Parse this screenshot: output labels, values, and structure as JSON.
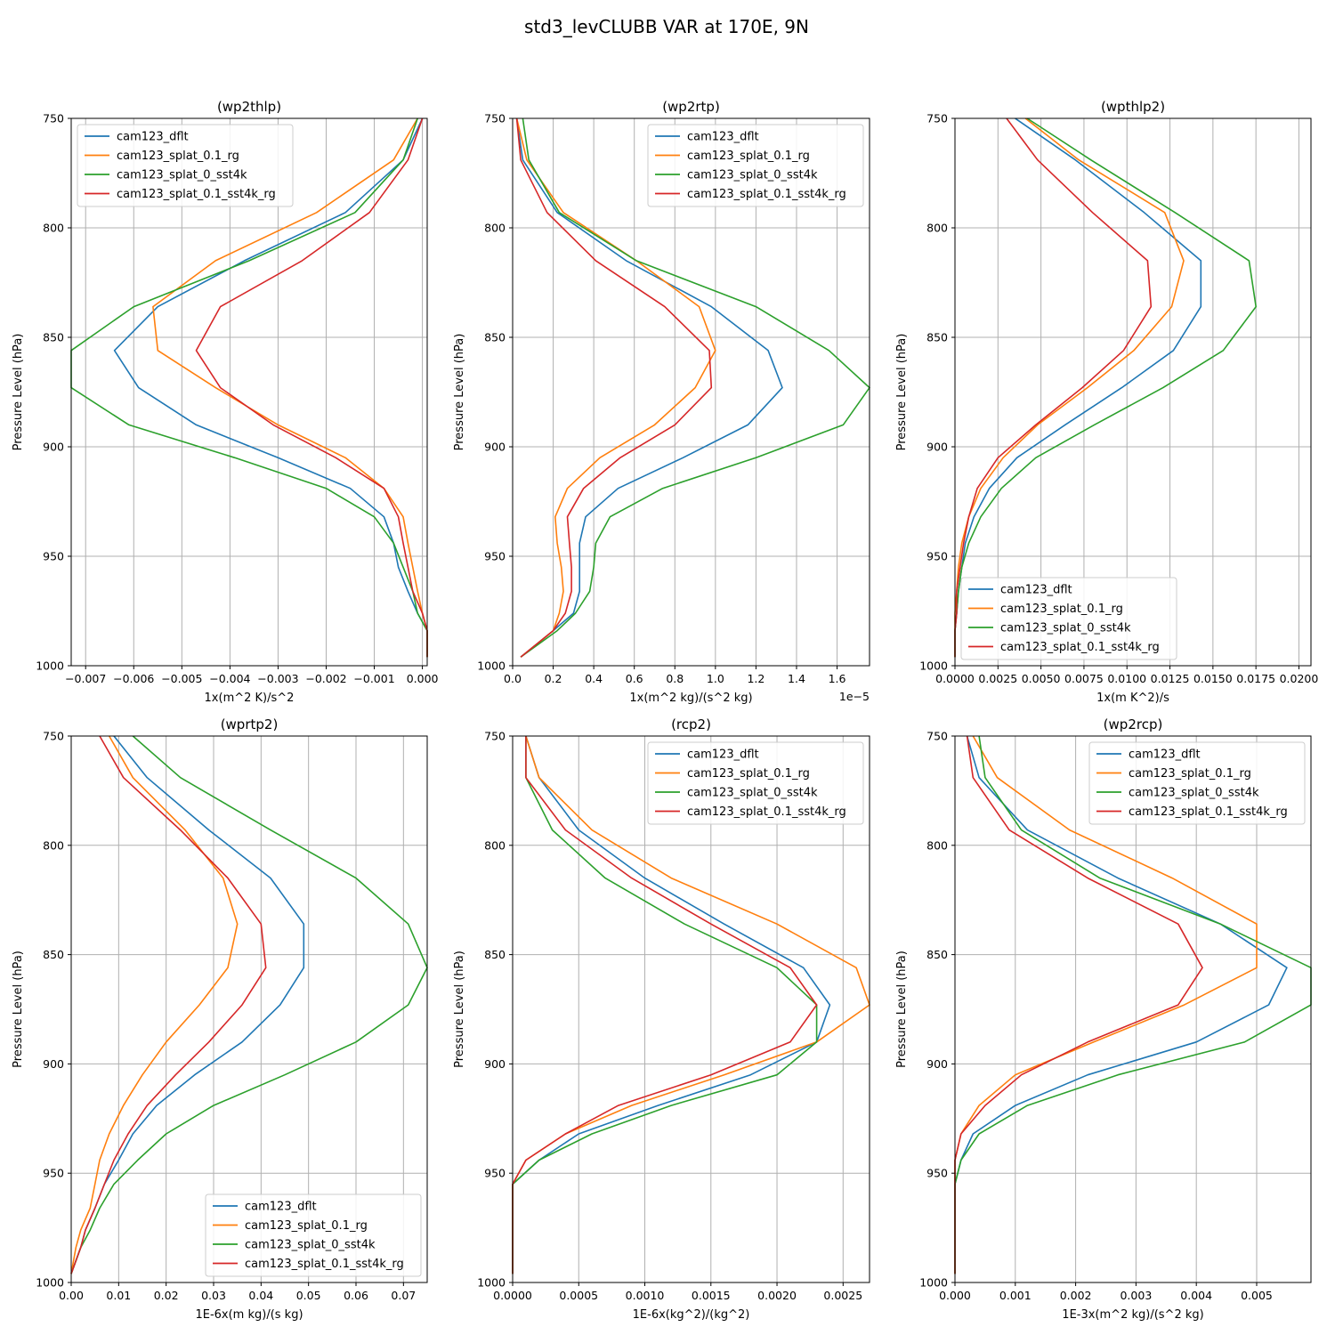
{
  "figure": {
    "title": "std3_levCLUBB VAR at 170E, 9N"
  },
  "colors": {
    "cam123_dflt": "#1f77b4",
    "cam123_splat_0.1_rg": "#ff7f0e",
    "cam123_splat_0_sst4k": "#2ca02c",
    "cam123_splat_0.1_sst4k_rg": "#d62728"
  },
  "chart_data": [
    {
      "type": "line",
      "title": "(wp2thlp)",
      "xlabel": "1x(m^2 K)/s^2",
      "ylabel": "Pressure Level (hPa)",
      "xlim": [
        -0.0073,
        0.0001
      ],
      "ylim": [
        1000,
        750
      ],
      "xticks": [
        -0.007,
        -0.006,
        -0.005,
        -0.004,
        -0.003,
        -0.002,
        -0.001,
        0.0
      ],
      "xtick_labels": [
        "−0.007",
        "−0.006",
        "−0.005",
        "−0.004",
        "−0.003",
        "−0.002",
        "−0.001",
        "0.000"
      ],
      "yticks": [
        750,
        800,
        850,
        900,
        950,
        1000
      ],
      "x_offset_label": "",
      "legend": "upper-left",
      "grid": true,
      "levels": [
        750,
        769,
        793,
        815,
        836,
        856,
        873,
        890,
        905,
        919,
        932,
        944,
        955,
        966,
        976,
        984,
        996
      ],
      "series": [
        {
          "name": "cam123_dflt",
          "x": [
            0.0,
            -0.0004,
            -0.0016,
            -0.0037,
            -0.0055,
            -0.0064,
            -0.0059,
            -0.0047,
            -0.003,
            -0.0015,
            -0.0008,
            -0.0006,
            -0.0005,
            -0.0003,
            -0.0001,
            0.0001,
            0.0001
          ]
        },
        {
          "name": "cam123_splat_0.1_rg",
          "x": [
            -0.0001,
            -0.0006,
            -0.0022,
            -0.0043,
            -0.0056,
            -0.0055,
            -0.0043,
            -0.003,
            -0.0016,
            -0.0008,
            -0.0004,
            -0.0003,
            -0.0002,
            -0.0001,
            0.0,
            0.0001,
            0.0001
          ]
        },
        {
          "name": "cam123_splat_0_sst4k",
          "x": [
            -0.0001,
            -0.0004,
            -0.0014,
            -0.0036,
            -0.006,
            -0.0073,
            -0.0073,
            -0.0061,
            -0.0039,
            -0.002,
            -0.001,
            -0.0006,
            -0.0004,
            -0.0002,
            -0.0001,
            0.0001,
            0.0001
          ]
        },
        {
          "name": "cam123_splat_0.1_sst4k_rg",
          "x": [
            0.0,
            -0.0003,
            -0.0011,
            -0.0025,
            -0.0042,
            -0.0047,
            -0.0042,
            -0.0031,
            -0.0018,
            -0.0008,
            -0.0005,
            -0.0004,
            -0.0003,
            -0.0002,
            0.0,
            0.0001,
            0.0001
          ]
        }
      ]
    },
    {
      "type": "line",
      "title": "(wp2rtp)",
      "xlabel": "1x(m^2 kg)/(s^2 kg)",
      "ylabel": "Pressure Level (hPa)",
      "xlim": [
        0.0,
        1.76
      ],
      "ylim": [
        1000,
        750
      ],
      "xticks": [
        0.0,
        0.2,
        0.4,
        0.6,
        0.8,
        1.0,
        1.2,
        1.4,
        1.6
      ],
      "xtick_labels": [
        "0.0",
        "0.2",
        "0.4",
        "0.6",
        "0.8",
        "1.0",
        "1.2",
        "1.4",
        "1.6"
      ],
      "yticks": [
        750,
        800,
        850,
        900,
        950,
        1000
      ],
      "x_offset_label": "1e−5",
      "legend": "upper-right",
      "grid": true,
      "levels": [
        750,
        769,
        793,
        815,
        836,
        856,
        873,
        890,
        905,
        919,
        932,
        944,
        955,
        966,
        976,
        984,
        996
      ],
      "series": [
        {
          "name": "cam123_dflt",
          "x": [
            0.02,
            0.05,
            0.22,
            0.56,
            0.98,
            1.26,
            1.33,
            1.16,
            0.84,
            0.52,
            0.36,
            0.33,
            0.33,
            0.33,
            0.3,
            0.2,
            0.04
          ]
        },
        {
          "name": "cam123_splat_0.1_rg",
          "x": [
            0.02,
            0.07,
            0.25,
            0.61,
            0.92,
            1.0,
            0.9,
            0.7,
            0.43,
            0.27,
            0.21,
            0.22,
            0.24,
            0.25,
            0.23,
            0.2,
            0.04
          ]
        },
        {
          "name": "cam123_splat_0_sst4k",
          "x": [
            0.05,
            0.08,
            0.23,
            0.61,
            1.2,
            1.56,
            1.76,
            1.63,
            1.2,
            0.74,
            0.48,
            0.41,
            0.4,
            0.38,
            0.31,
            0.22,
            0.04
          ]
        },
        {
          "name": "cam123_splat_0.1_sst4k_rg",
          "x": [
            0.02,
            0.04,
            0.17,
            0.41,
            0.75,
            0.97,
            0.98,
            0.8,
            0.53,
            0.35,
            0.27,
            0.28,
            0.29,
            0.29,
            0.26,
            0.2,
            0.04
          ]
        }
      ]
    },
    {
      "type": "line",
      "title": "(wpthlp2)",
      "xlabel": "1x(m K^2)/s",
      "ylabel": "Pressure Level (hPa)",
      "xlim": [
        0.0,
        0.0207
      ],
      "ylim": [
        1000,
        750
      ],
      "xticks": [
        0.0,
        0.0025,
        0.005,
        0.0075,
        0.01,
        0.0125,
        0.015,
        0.0175,
        0.02
      ],
      "xtick_labels": [
        "0.0000",
        "0.0025",
        "0.0050",
        "0.0075",
        "0.0100",
        "0.0125",
        "0.0150",
        "0.0175",
        "0.0200"
      ],
      "yticks": [
        750,
        800,
        850,
        900,
        950,
        1000
      ],
      "x_offset_label": "",
      "legend": "lower-left",
      "grid": true,
      "levels": [
        750,
        769,
        793,
        815,
        836,
        856,
        873,
        890,
        905,
        919,
        932,
        944,
        955,
        966,
        976,
        984,
        996
      ],
      "series": [
        {
          "name": "cam123_dflt",
          "x": [
            0.0035,
            0.007,
            0.011,
            0.0143,
            0.0143,
            0.0127,
            0.0097,
            0.0064,
            0.0036,
            0.002,
            0.0011,
            0.0006,
            0.0004,
            0.0002,
            0.0001,
            0.0,
            0.0
          ]
        },
        {
          "name": "cam123_splat_0.1_rg",
          "x": [
            0.0041,
            0.0072,
            0.0122,
            0.0133,
            0.0126,
            0.0104,
            0.0077,
            0.0048,
            0.0028,
            0.0015,
            0.0008,
            0.0004,
            0.0002,
            0.0001,
            0.0,
            0.0,
            0.0
          ]
        },
        {
          "name": "cam123_splat_0_sst4k",
          "x": [
            0.0042,
            0.0079,
            0.0128,
            0.0171,
            0.0175,
            0.0156,
            0.0121,
            0.0081,
            0.0047,
            0.0027,
            0.0015,
            0.0008,
            0.0004,
            0.0002,
            0.0001,
            0.0,
            0.0
          ]
        },
        {
          "name": "cam123_splat_0.1_sst4k_rg",
          "x": [
            0.003,
            0.0048,
            0.008,
            0.0112,
            0.0114,
            0.0098,
            0.0074,
            0.0047,
            0.0025,
            0.0013,
            0.0008,
            0.0005,
            0.0003,
            0.0001,
            0.0001,
            0.0,
            0.0
          ]
        }
      ]
    },
    {
      "type": "line",
      "title": "(wprtp2)",
      "xlabel": "1E-6x(m kg)/(s kg)",
      "ylabel": "Pressure Level (hPa)",
      "xlim": [
        0.0,
        0.075
      ],
      "ylim": [
        1000,
        750
      ],
      "xticks": [
        0.0,
        0.01,
        0.02,
        0.03,
        0.04,
        0.05,
        0.06,
        0.07
      ],
      "xtick_labels": [
        "0.00",
        "0.01",
        "0.02",
        "0.03",
        "0.04",
        "0.05",
        "0.06",
        "0.07"
      ],
      "yticks": [
        750,
        800,
        850,
        900,
        950,
        1000
      ],
      "x_offset_label": "",
      "legend": "lower-right",
      "grid": true,
      "levels": [
        750,
        769,
        793,
        815,
        836,
        856,
        873,
        890,
        905,
        919,
        932,
        944,
        955,
        966,
        976,
        984,
        996
      ],
      "series": [
        {
          "name": "cam123_dflt",
          "x": [
            0.009,
            0.016,
            0.029,
            0.042,
            0.049,
            0.049,
            0.044,
            0.036,
            0.026,
            0.018,
            0.013,
            0.01,
            0.007,
            0.005,
            0.003,
            0.002,
            0.0
          ]
        },
        {
          "name": "cam123_splat_0.1_rg",
          "x": [
            0.008,
            0.013,
            0.024,
            0.032,
            0.035,
            0.033,
            0.027,
            0.02,
            0.015,
            0.011,
            0.008,
            0.006,
            0.005,
            0.004,
            0.002,
            0.001,
            0.0
          ]
        },
        {
          "name": "cam123_splat_0_sst4k",
          "x": [
            0.013,
            0.023,
            0.042,
            0.06,
            0.071,
            0.075,
            0.071,
            0.06,
            0.045,
            0.03,
            0.02,
            0.014,
            0.009,
            0.006,
            0.004,
            0.002,
            0.0
          ]
        },
        {
          "name": "cam123_splat_0.1_sst4k_rg",
          "x": [
            0.006,
            0.011,
            0.023,
            0.033,
            0.04,
            0.041,
            0.036,
            0.029,
            0.022,
            0.016,
            0.012,
            0.009,
            0.007,
            0.005,
            0.003,
            0.002,
            0.0
          ]
        }
      ]
    },
    {
      "type": "line",
      "title": "(rcp2)",
      "xlabel": "1E-6x(kg^2)/(kg^2)",
      "ylabel": "Pressure Level (hPa)",
      "xlim": [
        0.0,
        0.0027
      ],
      "ylim": [
        1000,
        750
      ],
      "xticks": [
        0.0,
        0.0005,
        0.001,
        0.0015,
        0.002,
        0.0025
      ],
      "xtick_labels": [
        "0.0000",
        "0.0005",
        "0.0010",
        "0.0015",
        "0.0020",
        "0.0025"
      ],
      "yticks": [
        750,
        800,
        850,
        900,
        950,
        1000
      ],
      "x_offset_label": "",
      "legend": "upper-right",
      "grid": true,
      "levels": [
        750,
        769,
        793,
        815,
        836,
        856,
        873,
        890,
        905,
        919,
        932,
        944,
        955,
        966,
        976,
        984,
        996
      ],
      "series": [
        {
          "name": "cam123_dflt",
          "x": [
            0.0001,
            0.0002,
            0.0005,
            0.001,
            0.0016,
            0.0022,
            0.0024,
            0.0023,
            0.0018,
            0.0011,
            0.0005,
            0.0002,
            0.0,
            0.0,
            0.0,
            0.0,
            0.0
          ]
        },
        {
          "name": "cam123_splat_0.1_rg",
          "x": [
            0.0001,
            0.0002,
            0.0006,
            0.0012,
            0.002,
            0.0026,
            0.0027,
            0.0023,
            0.0016,
            0.0009,
            0.0004,
            0.0001,
            0.0,
            0.0,
            0.0,
            0.0,
            0.0
          ]
        },
        {
          "name": "cam123_splat_0_sst4k",
          "x": [
            0.0001,
            0.0001,
            0.0003,
            0.0007,
            0.0013,
            0.002,
            0.0023,
            0.0023,
            0.002,
            0.0012,
            0.0006,
            0.0002,
            0.0,
            0.0,
            0.0,
            0.0,
            0.0
          ]
        },
        {
          "name": "cam123_splat_0.1_sst4k_rg",
          "x": [
            0.0001,
            0.0001,
            0.0004,
            0.0009,
            0.0015,
            0.0021,
            0.0023,
            0.0021,
            0.0015,
            0.0008,
            0.0004,
            0.0001,
            0.0,
            0.0,
            0.0,
            0.0,
            0.0
          ]
        }
      ]
    },
    {
      "type": "line",
      "title": "(wp2rcp)",
      "xlabel": "1E-3x(m^2 kg)/(s^2 kg)",
      "ylabel": "Pressure Level (hPa)",
      "xlim": [
        0.0,
        0.0059
      ],
      "ylim": [
        1000,
        750
      ],
      "xticks": [
        0.0,
        0.001,
        0.002,
        0.003,
        0.004,
        0.005
      ],
      "xtick_labels": [
        "0.000",
        "0.001",
        "0.002",
        "0.003",
        "0.004",
        "0.005"
      ],
      "yticks": [
        750,
        800,
        850,
        900,
        950,
        1000
      ],
      "x_offset_label": "",
      "legend": "upper-right",
      "grid": true,
      "levels": [
        750,
        769,
        793,
        815,
        836,
        856,
        873,
        890,
        905,
        919,
        932,
        944,
        955,
        966,
        976,
        984,
        996
      ],
      "series": [
        {
          "name": "cam123_dflt",
          "x": [
            0.0002,
            0.0004,
            0.0012,
            0.0027,
            0.0044,
            0.0055,
            0.0052,
            0.004,
            0.0022,
            0.001,
            0.0003,
            0.0001,
            0.0,
            0.0,
            0.0,
            0.0,
            0.0
          ]
        },
        {
          "name": "cam123_splat_0.1_rg",
          "x": [
            0.0003,
            0.0007,
            0.0019,
            0.0036,
            0.005,
            0.005,
            0.0038,
            0.0023,
            0.001,
            0.0004,
            0.0001,
            0.0,
            0.0,
            0.0,
            0.0,
            0.0,
            0.0
          ]
        },
        {
          "name": "cam123_splat_0_sst4k",
          "x": [
            0.0004,
            0.0005,
            0.0011,
            0.0024,
            0.0044,
            0.0059,
            0.0059,
            0.0048,
            0.0027,
            0.0012,
            0.0004,
            0.0001,
            0.0,
            0.0,
            0.0,
            0.0,
            0.0
          ]
        },
        {
          "name": "cam123_splat_0.1_sst4k_rg",
          "x": [
            0.0002,
            0.0003,
            0.0009,
            0.0022,
            0.0037,
            0.0041,
            0.0037,
            0.0022,
            0.0011,
            0.0005,
            0.0001,
            0.0,
            0.0,
            0.0,
            0.0,
            0.0,
            0.0
          ]
        }
      ]
    }
  ]
}
